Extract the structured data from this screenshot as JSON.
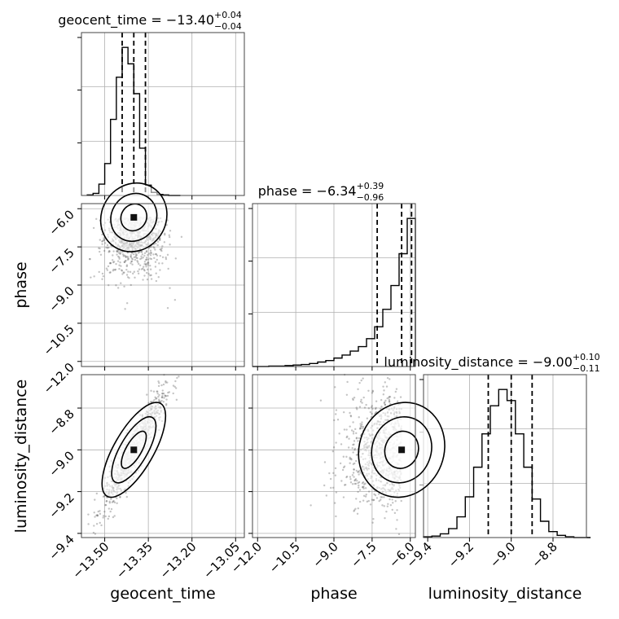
{
  "chart_data": {
    "type": "corner",
    "parameters": [
      "geocent_time",
      "phase",
      "luminosity_distance"
    ],
    "axis_labels": {
      "geocent_time": "geocent_time",
      "phase": "phase",
      "luminosity_distance": "luminosity_distance"
    },
    "ranges": {
      "geocent_time": [
        -13.58,
        -13.02
      ],
      "phase": [
        -12.2,
        -5.8
      ],
      "luminosity_distance": [
        -9.42,
        -8.64
      ]
    },
    "ticks": {
      "geocent_time": [
        {
          "v": -13.5,
          "label": "−13.50"
        },
        {
          "v": -13.35,
          "label": "−13.35"
        },
        {
          "v": -13.2,
          "label": "−13.20"
        },
        {
          "v": -13.05,
          "label": "−13.05"
        }
      ],
      "phase": [
        {
          "v": -12.0,
          "label": "−12.0"
        },
        {
          "v": -10.5,
          "label": "−10.5"
        },
        {
          "v": -9.0,
          "label": "−9.0"
        },
        {
          "v": -7.5,
          "label": "−7.5"
        },
        {
          "v": -6.0,
          "label": "−6.0"
        }
      ],
      "luminosity_distance": [
        {
          "v": -9.4,
          "label": "−9.4"
        },
        {
          "v": -9.2,
          "label": "−9.2"
        },
        {
          "v": -9.0,
          "label": "−9.0"
        },
        {
          "v": -8.8,
          "label": "−8.8"
        }
      ]
    },
    "titles": {
      "geocent_time": {
        "prefix": "geocent_time = ",
        "value": "−13.40",
        "plus": "+0.04",
        "minus": "−0.04"
      },
      "phase": {
        "prefix": "phase = ",
        "value": "−6.34",
        "plus": "+0.39",
        "minus": "−0.96"
      },
      "luminosity_distance": {
        "prefix": "luminosity_distance = ",
        "value": "−9.00",
        "plus": "+0.10",
        "minus": "−0.11"
      }
    },
    "quantiles": {
      "geocent_time": [
        -13.44,
        -13.4,
        -13.36
      ],
      "phase": [
        -7.3,
        -6.34,
        -5.95
      ],
      "luminosity_distance": [
        -9.11,
        -9.0,
        -8.9
      ]
    },
    "histograms": {
      "geocent_time": {
        "start": -13.56,
        "width": 0.02,
        "counts": [
          1,
          4,
          22,
          62,
          148,
          230,
          288,
          256,
          198,
          92,
          20,
          6,
          2,
          1,
          0,
          0
        ]
      },
      "phase": {
        "start": -12.2,
        "width": 0.32,
        "counts": [
          0,
          0,
          1,
          1,
          2,
          3,
          4,
          6,
          9,
          12,
          17,
          23,
          31,
          40,
          56,
          80,
          115,
          163,
          227,
          298
        ]
      },
      "luminosity_distance": {
        "start": -9.42,
        "width": 0.04,
        "counts": [
          1,
          2,
          5,
          12,
          28,
          55,
          95,
          140,
          178,
          200,
          185,
          140,
          95,
          52,
          22,
          8,
          3,
          1,
          0,
          0
        ]
      }
    },
    "correlations": {
      "phase|geocent_time": -0.45,
      "luminosity_distance|geocent_time": 0.92,
      "luminosity_distance|phase": -0.3
    },
    "grid": true
  }
}
